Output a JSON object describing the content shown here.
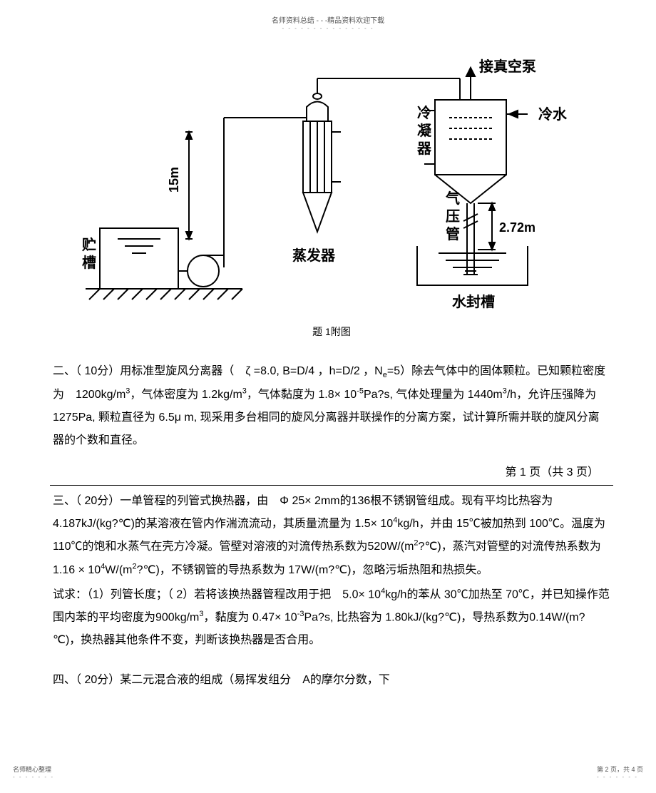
{
  "header": {
    "line1": "名师资料总结 - - -精品资料欢迎下载",
    "dots": "- - - - - - - - - - - - - - -"
  },
  "diagram": {
    "caption": "题 1附图",
    "labels": {
      "storage_tank": "贮\n槽",
      "evaporator": "蒸发器",
      "condenser": "冷\n凝\n器",
      "vacuum_pump": "接真空泵",
      "cold_water": "冷水",
      "barometric_leg": "气\n压\n管",
      "seal_tank": "水封槽",
      "height_15m": "15m",
      "height_272m": "2.72m"
    },
    "styling": {
      "stroke": "#000000",
      "stroke_width": 2,
      "font_size": 20,
      "font_weight": "bold",
      "background": "#ffffff"
    }
  },
  "question2": {
    "label": "二、",
    "text": "（ 10分）用标准型旋风分离器（　ζ =8.0,  B=D/4 ，h=D/2 ，N<sub>e</sub>=5）除去气体中的固体颗粒。已知颗粒密度为　1200kg/m<sup>3</sup>，气体密度为 1.2kg/m<sup>3</sup>，气体黏度为 1.8× 10<sup>-5</sup>Pa?s, 气体处理量为 1440m<sup>3</sup>/h，允许压强降为 1275Pa,  颗粒直径为  6.5μ m,  现采用多台相同的旋风分离器并联操作的分离方案，试计算所需并联的旋风分离器的个数和直径。"
  },
  "page_marker": "第  1  页（共  3 页）",
  "question3": {
    "label": "三、",
    "text": "（ 20分）一单管程的列管式换热器，由　Φ 25× 2mm的136根不锈钢管组成。现有平均比热容为　4.187kJ/(kg?℃)的某溶液在管内作湍流流动，其质量流量为  1.5× 10<sup>4</sup>kg/h，并由 15℃被加热到  100℃。温度为110℃的饱和水蒸气在壳方冷凝。管壁对溶液的对流传热系数为520W/(m<sup>2</sup>?℃)，蒸汽对管壁的对流传热系数为　1.16 ×  10<sup>4</sup>W/(m<sup>2</sup>?℃)，不锈钢管的导热系数为  17W/(m?℃)，忽略污垢热阻和热损失。",
    "subtext": "试求：（1）列管长度；（ 2）若将该换热器管程改用于把　5.0× 10<sup>4</sup>kg/h的苯从 30℃加热至  70℃，并已知操作范围内苯的平均密度为900kg/m<sup>3</sup>，黏度为 0.47× 10<sup>-3</sup>Pa?s, 比热容为 1.80kJ/(kg?℃)，导热系数为0.14W/(m?℃)，换热器其他条件不变，判断该换热器是否合用。"
  },
  "question4": {
    "label": "四、",
    "text": "（ 20分）某二元混合液的组成（易挥发组分　A的摩尔分数，下"
  },
  "footer": {
    "left": "名师精心整理",
    "right": "第 2 页，共 4 页"
  }
}
